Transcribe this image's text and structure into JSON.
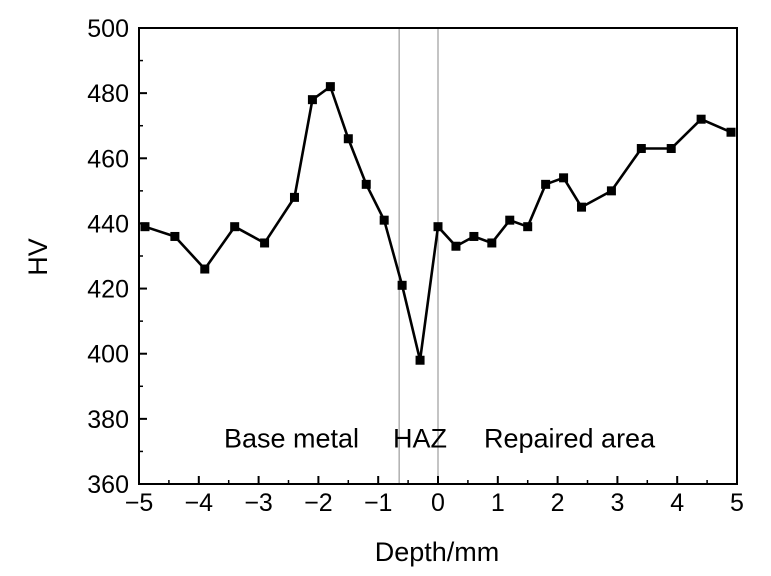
{
  "chart_data": {
    "type": "line",
    "title": "",
    "xlabel": "Depth/mm",
    "ylabel": "HV",
    "xlim": [
      -5,
      5
    ],
    "ylim": [
      360,
      500
    ],
    "x_ticks": [
      -5,
      -4,
      -3,
      -2,
      -1,
      0,
      1,
      2,
      3,
      4,
      5
    ],
    "x_tick_labels": [
      "−5",
      "−4",
      "−3",
      "−2",
      "−1",
      "0",
      "1",
      "2",
      "3",
      "4",
      "5"
    ],
    "y_ticks": [
      360,
      380,
      400,
      420,
      440,
      460,
      480,
      500
    ],
    "y_tick_labels": [
      "360",
      "380",
      "400",
      "420",
      "440",
      "460",
      "480",
      "500"
    ],
    "grid": false,
    "legend": "none",
    "line_color": "#000000",
    "marker": "square",
    "reference_lines_x": [
      -0.65,
      0
    ],
    "region_labels": [
      {
        "text": "Base metal",
        "x": -2.45,
        "y": 374
      },
      {
        "text": "HAZ",
        "x": -0.3,
        "y": 374
      },
      {
        "text": "Repaired area",
        "x": 2.2,
        "y": 374
      }
    ],
    "series": [
      {
        "x": [
          -4.9,
          -4.4,
          -3.9,
          -3.4,
          -2.9,
          -2.4,
          -2.1,
          -1.8,
          -1.5,
          -1.2,
          -0.9,
          -0.6,
          -0.3,
          0,
          0.3,
          0.6,
          0.9,
          1.2,
          1.5,
          1.8,
          2.1,
          2.4,
          2.9,
          3.4,
          3.9,
          4.4,
          4.9
        ],
        "y": [
          439,
          436,
          426,
          439,
          434,
          448,
          478,
          482,
          466,
          452,
          441,
          421,
          398,
          439,
          433,
          436,
          434,
          441,
          439,
          452,
          454,
          445,
          450,
          463,
          463,
          472,
          468
        ]
      }
    ]
  }
}
